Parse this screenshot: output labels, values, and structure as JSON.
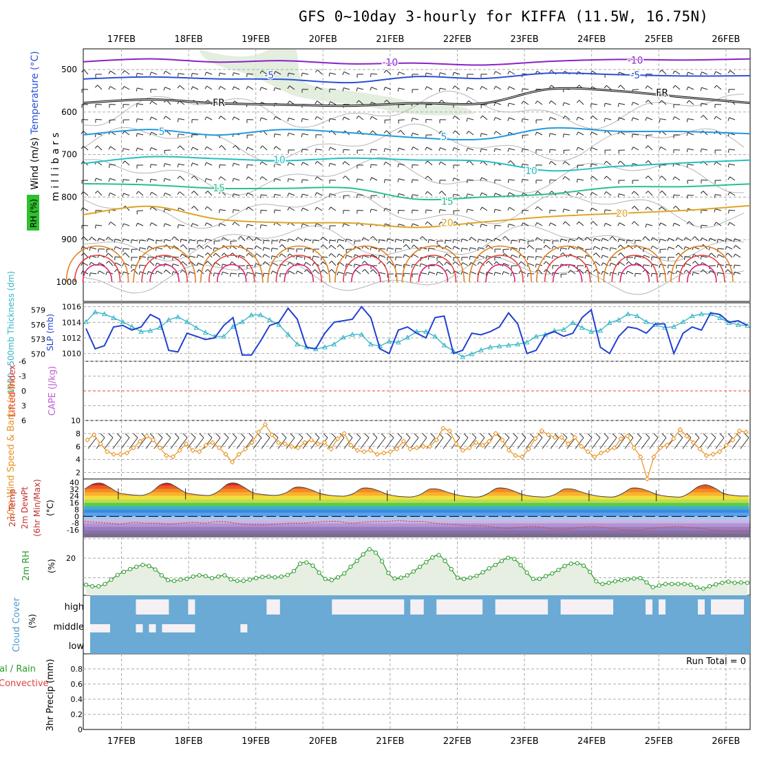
{
  "title": "GFS 0~10day 3-hourly for KIFFA (11.5W, 16.75N)",
  "colors": {
    "grid": "#aaaaaa",
    "thickness": "#2fb4c4",
    "slp": "#1f3fd0",
    "wind10": "#e8901c",
    "rh2m": "#2a9a2a",
    "cloud": "#6aaad4",
    "cloud_clear": "#f4f0f4",
    "rh_fill": "#e6efe2",
    "fr": "#000000"
  },
  "chart_data": [
    {
      "panel": "vertical-section",
      "type": "contour",
      "ylabel": "millibars",
      "side_labels": [
        "Wind (m/s)",
        "Temperature (°C)",
        "RH (%)"
      ],
      "date_ticks": [
        "17FEB",
        "18FEB",
        "19FEB",
        "20FEB",
        "21FEB",
        "22FEB",
        "23FEB",
        "24FEB",
        "25FEB",
        "26FEB"
      ],
      "yticks": [
        500,
        600,
        700,
        800,
        900,
        1000
      ],
      "ylim": [
        1000,
        450
      ],
      "contours": [
        {
          "label": "-10",
          "color": "#8a20c8",
          "levels": [
            479,
            478,
            480,
            481,
            486,
            488,
            487,
            480,
            478,
            477,
            476
          ]
        },
        {
          "label": "-5",
          "color": "#2a50d8",
          "levels": [
            522,
            518,
            519,
            521,
            528,
            514,
            524,
            510,
            512,
            515,
            517
          ]
        },
        {
          "label": "FR",
          "color": "#000000",
          "levels": [
            578,
            572,
            580,
            582,
            583,
            580,
            582,
            548,
            552,
            568,
            576
          ]
        },
        {
          "label": "5",
          "color": "#1e9ae0",
          "levels": [
            652,
            640,
            652,
            644,
            648,
            658,
            666,
            638,
            646,
            644,
            650
          ]
        },
        {
          "label": "10",
          "color": "#22c0c0",
          "levels": [
            718,
            708,
            712,
            712,
            706,
            712,
            718,
            738,
            728,
            718,
            712
          ]
        },
        {
          "label": "15",
          "color": "#28c08c",
          "levels": [
            770,
            774,
            782,
            780,
            776,
            804,
            798,
            790,
            774,
            774,
            770
          ]
        },
        {
          "label": "20",
          "color": "#e0a428",
          "levels": [
            840,
            820,
            850,
            860,
            860,
            870,
            858,
            848,
            836,
            830,
            822
          ]
        }
      ],
      "contour_labels": [
        {
          "text": "-10",
          "day": 4.0,
          "level": 483,
          "color": "#8a20c8"
        },
        {
          "text": "-10",
          "day": 7.65,
          "level": 478,
          "color": "#8a20c8"
        },
        {
          "text": "-5",
          "day": 2.2,
          "level": 513,
          "color": "#2a50d8"
        },
        {
          "text": "-5",
          "day": 7.65,
          "level": 513,
          "color": "#2a50d8"
        },
        {
          "text": "FR",
          "day": 1.45,
          "level": 578,
          "color": "#000000"
        },
        {
          "text": "FR",
          "day": 8.05,
          "level": 554,
          "color": "#000000"
        },
        {
          "text": "5",
          "day": 0.6,
          "level": 646,
          "color": "#1e9ae0"
        },
        {
          "text": "5",
          "day": 4.8,
          "level": 658,
          "color": "#1e9ae0"
        },
        {
          "text": "10",
          "day": 2.35,
          "level": 712,
          "color": "#22c0c0"
        },
        {
          "text": "10",
          "day": 6.1,
          "level": 738,
          "color": "#22c0c0"
        },
        {
          "text": "15",
          "day": 1.45,
          "level": 778,
          "color": "#28c08c"
        },
        {
          "text": "15",
          "day": 4.85,
          "level": 810,
          "color": "#28c08c"
        },
        {
          "text": "20",
          "day": 4.85,
          "level": 860,
          "color": "#e0a428"
        },
        {
          "text": "20",
          "day": 7.45,
          "level": 838,
          "color": "#e0a428"
        }
      ]
    },
    {
      "panel": "thickness-slp",
      "type": "line",
      "ylabel_left": "1000~500mb Thickness (dm)",
      "ylabel_right": "SLP (mb)",
      "yticks_left": [
        570,
        573,
        576,
        579
      ],
      "yticks_right": [
        1010,
        1012,
        1014,
        1016
      ],
      "ylim_left": [
        568.5,
        580.5
      ],
      "ylim_right": [
        1009,
        1016.5
      ],
      "series": [
        {
          "name": "Thickness",
          "axis": "left",
          "values": [
            576.6,
            578.6,
            578.2,
            577.4,
            576.6,
            575.6,
            574.6,
            574.8,
            575.4,
            577.0,
            577.6,
            576.6,
            575.4,
            574.4,
            573.6,
            573.6,
            575.6,
            576.6,
            578.0,
            578.0,
            577.0,
            576.0,
            574.0,
            572.0,
            571.4,
            571.0,
            571.4,
            572.0,
            573.4,
            574.0,
            574.0,
            572.0,
            571.6,
            572.6,
            572.4,
            573.4,
            574.6,
            574.6,
            573.6,
            571.8,
            570.6,
            569.4,
            570.0,
            570.8,
            571.4,
            571.6,
            571.8,
            572.0,
            572.4,
            573.6,
            574.0,
            574.8,
            575.0,
            576.4,
            575.4,
            574.6,
            574.8,
            576.4,
            577.0,
            578.2,
            577.8,
            576.6,
            576.0,
            575.4,
            575.6,
            576.6,
            577.8,
            578.2,
            578.2,
            577.4,
            576.4,
            576.0,
            575.8
          ]
        },
        {
          "name": "SLP",
          "axis": "right",
          "values": [
            1013.2,
            1010.6,
            1011.0,
            1013.4,
            1013.6,
            1013.0,
            1013.4,
            1015.0,
            1014.4,
            1010.4,
            1010.2,
            1012.6,
            1012.2,
            1011.8,
            1012.0,
            1013.6,
            1014.6,
            1009.8,
            1009.8,
            1011.6,
            1013.6,
            1014.0,
            1015.8,
            1014.4,
            1010.8,
            1010.6,
            1012.6,
            1014.0,
            1014.2,
            1014.4,
            1016.0,
            1014.6,
            1010.6,
            1010.0,
            1013.0,
            1013.4,
            1012.6,
            1012.0,
            1014.6,
            1014.8,
            1010.0,
            1010.4,
            1012.6,
            1012.4,
            1012.8,
            1013.4,
            1015.2,
            1013.8,
            1010.0,
            1010.4,
            1012.4,
            1012.8,
            1012.2,
            1012.6,
            1014.6,
            1015.6,
            1010.8,
            1010.0,
            1012.2,
            1013.4,
            1013.2,
            1012.6,
            1013.8,
            1013.8,
            1010.0,
            1012.6,
            1013.4,
            1013.0,
            1015.2,
            1015.0,
            1014.0,
            1014.2,
            1013.6
          ]
        }
      ]
    },
    {
      "panel": "stability",
      "type": "line",
      "ylabel_left": "Lifted Index",
      "ylabel_right": "CAPE (J/kg)",
      "yticks": [
        "-6",
        "-3",
        "0",
        "3",
        "6"
      ],
      "ylim": [
        -6,
        6
      ],
      "zero_line": true
    },
    {
      "panel": "wind10m",
      "type": "line",
      "ylabel": "10m Wind Speed & Barbs (m/s)",
      "yticks": [
        2,
        4,
        6,
        8,
        10
      ],
      "ylim": [
        1,
        10
      ],
      "series": [
        {
          "name": "10m Wind Speed",
          "values": [
            7.0,
            7.8,
            6.4,
            5.2,
            4.8,
            4.8,
            5.0,
            5.8,
            6.8,
            7.6,
            7.0,
            5.8,
            4.6,
            4.4,
            5.4,
            6.4,
            5.4,
            5.2,
            6.2,
            6.6,
            5.8,
            4.8,
            3.6,
            4.8,
            5.6,
            6.6,
            8.2,
            9.4,
            7.8,
            6.6,
            6.4,
            6.0,
            5.8,
            6.6,
            7.0,
            6.4,
            6.6,
            5.6,
            7.2,
            8.0,
            6.2,
            5.4,
            5.2,
            5.4,
            4.8,
            5.0,
            5.2,
            5.6,
            6.8,
            5.6,
            5.8,
            6.0,
            6.0,
            7.0,
            8.8,
            8.4,
            6.4,
            5.4,
            5.8,
            6.6,
            6.2,
            6.8,
            8.0,
            7.0,
            5.4,
            4.6,
            4.4,
            5.6,
            7.2,
            8.4,
            7.8,
            7.4,
            7.4,
            6.4,
            7.4,
            6.0,
            5.2,
            4.4,
            5.0,
            5.4,
            5.8,
            7.2,
            7.6,
            5.8,
            4.4,
            1.0,
            4.4,
            5.8,
            6.2,
            7.2,
            8.6,
            7.6,
            6.6,
            5.6,
            4.6,
            4.8,
            5.2,
            6.2,
            7.0,
            8.4,
            8.2
          ]
        }
      ]
    },
    {
      "panel": "temp2m",
      "type": "area",
      "ylabel": "2m Temp 2m DewPt (6hr Min/Max) (°C)",
      "yticks": [
        40,
        32,
        24,
        16,
        8,
        0,
        -8,
        -16
      ],
      "ylim": [
        -24,
        44
      ],
      "series": [
        {
          "name": "2m Temp",
          "values": [
            32,
            38,
            39,
            34,
            28,
            26,
            25,
            25,
            29,
            37,
            39,
            34,
            28,
            26,
            25,
            25,
            30,
            38,
            39,
            34,
            28,
            26,
            25,
            25,
            28,
            34,
            34,
            31,
            27,
            25,
            24,
            24,
            27,
            33,
            33,
            30,
            26,
            24,
            23,
            23,
            26,
            32,
            32,
            29,
            26,
            24,
            23,
            23,
            27,
            33,
            33,
            30,
            26,
            24,
            23,
            23,
            26,
            32,
            32,
            29,
            26,
            24,
            23,
            23,
            27,
            33,
            33,
            30,
            26,
            24,
            23,
            23,
            28,
            35,
            37,
            33,
            27,
            25,
            24,
            24
          ]
        },
        {
          "name": "2m DewPt",
          "values": [
            -6,
            -7,
            -8,
            -9,
            -7,
            -8,
            -8,
            -9,
            -8,
            -7,
            -8,
            -6,
            -7,
            -9,
            -10,
            -10,
            -9,
            -8,
            -8,
            -7,
            -6,
            -6,
            -8,
            -7,
            -6,
            -6,
            -5,
            -6,
            -6,
            -8,
            -9,
            -10,
            -11,
            -11,
            -13,
            -14,
            -13,
            -12,
            -13,
            -15,
            -15,
            -13,
            -12,
            -13,
            -15,
            -16,
            -16,
            -14,
            -13,
            -12,
            -13,
            -14,
            -16,
            -17,
            -17,
            -16
          ]
        }
      ]
    },
    {
      "panel": "rh2m",
      "type": "area",
      "ylabel": "2m RH (%)",
      "yticks": [
        20
      ],
      "ylim": [
        1,
        31
      ],
      "series": [
        {
          "name": "2m RH",
          "values": [
            6.4,
            5.6,
            5.6,
            6.8,
            9.0,
            11.4,
            13.0,
            14.4,
            15.6,
            16.6,
            16.0,
            14.2,
            11.2,
            8.8,
            8.4,
            9.0,
            9.4,
            10.6,
            11.2,
            10.8,
            9.8,
            10.6,
            11.2,
            9.2,
            8.4,
            8.4,
            9.0,
            9.8,
            10.4,
            10.6,
            10.2,
            10.6,
            11.4,
            13.4,
            17.2,
            17.8,
            16.2,
            12.6,
            9.4,
            8.8,
            10.2,
            12.2,
            15.6,
            18.6,
            22.0,
            24.6,
            22.8,
            18.4,
            12.4,
            9.6,
            10.0,
            11.2,
            13.2,
            15.6,
            18.0,
            20.4,
            21.6,
            18.6,
            14.4,
            10.0,
            9.4,
            10.0,
            11.0,
            12.8,
            14.8,
            16.6,
            18.6,
            20.2,
            19.6,
            16.4,
            12.6,
            9.4,
            9.4,
            10.8,
            12.2,
            14.0,
            16.0,
            17.2,
            17.4,
            16.2,
            13.0,
            8.2,
            6.8,
            7.4,
            8.2,
            8.8,
            9.2,
            9.6,
            9.8,
            7.6,
            5.2,
            6.0,
            6.8,
            6.8,
            6.8,
            6.8,
            6.4,
            5.0,
            4.4,
            5.6,
            6.6,
            7.4,
            8.0,
            7.4,
            7.6,
            7.4
          ]
        }
      ]
    },
    {
      "panel": "cloud-cover",
      "type": "bar",
      "ylabel": "Cloud Cover (%)",
      "yticks": [
        "high",
        "middle",
        "low"
      ],
      "series": [
        {
          "name": "high",
          "values": [
            0,
            0,
            0,
            0,
            0,
            0,
            0,
            1,
            1,
            1,
            1,
            1,
            0,
            0,
            0,
            1,
            0,
            0,
            0,
            0,
            0,
            0,
            0,
            0,
            0,
            0,
            0,
            1,
            1,
            0,
            0,
            0,
            0,
            0,
            0,
            0,
            0,
            1,
            1,
            1,
            1,
            1,
            1,
            1,
            1,
            1,
            1,
            1,
            0,
            1,
            1,
            0,
            0,
            1,
            1,
            1,
            1,
            1,
            1,
            1,
            0,
            0,
            1,
            1,
            1,
            1,
            1,
            1,
            1,
            1,
            0,
            0,
            1,
            1,
            1,
            1,
            1,
            1,
            1,
            1,
            0,
            0,
            0,
            0,
            0,
            1,
            0,
            1,
            0,
            0,
            0,
            0,
            0,
            1,
            0,
            1,
            1,
            1,
            1,
            1,
            0
          ]
        },
        {
          "name": "middle",
          "values": [
            1,
            1,
            1,
            0,
            0,
            0,
            0,
            1,
            0,
            1,
            0,
            1,
            1,
            1,
            1,
            1,
            0,
            0,
            0,
            0,
            0,
            0,
            0,
            1,
            0,
            0,
            0,
            0,
            0,
            0,
            0,
            0,
            0,
            0,
            0,
            0,
            0,
            0,
            0,
            0,
            0,
            0,
            0,
            0,
            0,
            0,
            0,
            0,
            0,
            0,
            0,
            0,
            0,
            0,
            0,
            0,
            0,
            0,
            0,
            0,
            0,
            0,
            0,
            0,
            0,
            0,
            0,
            0,
            0,
            0,
            0,
            0,
            0,
            0,
            0,
            0,
            0,
            0,
            0,
            0,
            0,
            0,
            0,
            0,
            0,
            0,
            0,
            0,
            0,
            0,
            0,
            0,
            0,
            0,
            0,
            0,
            0,
            0,
            0,
            0,
            0
          ]
        }
      ]
    },
    {
      "panel": "precip",
      "type": "bar",
      "ylabel_left": "Total / Rain Convective",
      "ylabel": "3hr Precip (mm)",
      "yticks": [
        0,
        0.2,
        0.4,
        0.6,
        0.8
      ],
      "ylim": [
        0,
        1
      ],
      "run_total_label": "Run Total = 0",
      "values": []
    }
  ]
}
